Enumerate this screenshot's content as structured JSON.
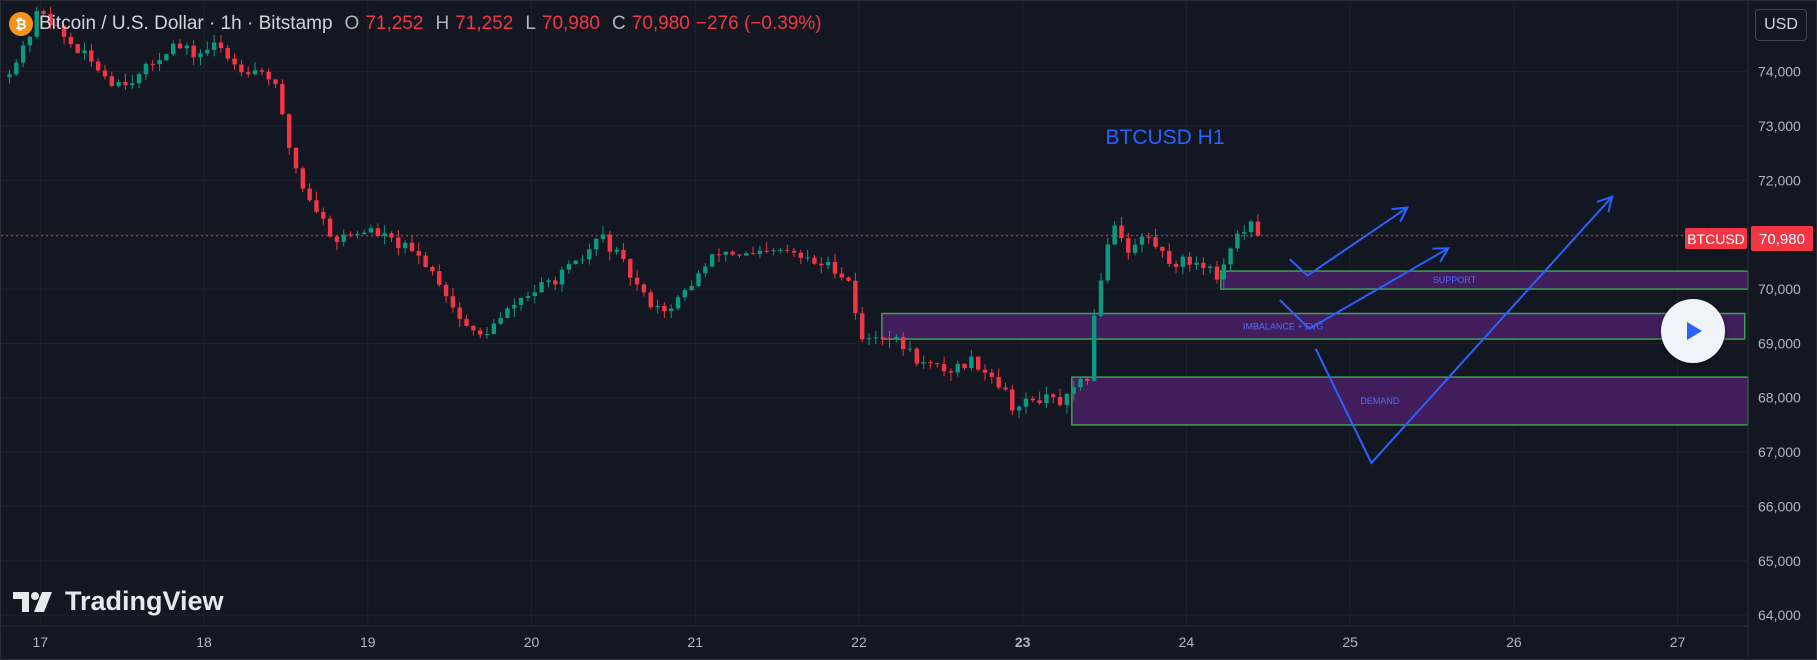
{
  "header": {
    "symbol": "Bitcoin / U.S. Dollar · 1h · Bitstamp",
    "open_label": "O",
    "open": "71,252",
    "high_label": "H",
    "high": "71,252",
    "low_label": "L",
    "low": "70,980",
    "close_label": "C",
    "close": "70,980",
    "change": "−276 (−0.39%)",
    "logo_glyph": "₿"
  },
  "currency": "USD",
  "brand": "TradingView",
  "colors": {
    "up": "#089981",
    "down": "#f23645",
    "zone_fill": "#4a1f66",
    "zone_border": "#3fa04f",
    "annotation": "#2962ff",
    "price_tag": "#f23645"
  },
  "chart_data": {
    "type": "candlestick",
    "title": "BTCUSD H1",
    "x_ticks": [
      "17",
      "18",
      "19",
      "20",
      "21",
      "22",
      "23",
      "24",
      "25",
      "26",
      "27"
    ],
    "y_ticks": [
      "64,000",
      "65,000",
      "66,000",
      "67,000",
      "68,000",
      "69,000",
      "70,000",
      "71,000",
      "72,000",
      "73,000",
      "74,000"
    ],
    "ylim": [
      63800,
      75300
    ],
    "x_range_days": [
      16.76,
      27.43
    ],
    "last_price": 70980,
    "last_price_label": "70,980",
    "price_tag_label": "BTCUSD",
    "key_prices": [
      [
        16.77,
        73900
      ],
      [
        16.9,
        74400
      ],
      [
        17.0,
        75200
      ],
      [
        17.12,
        74700
      ],
      [
        17.3,
        74200
      ],
      [
        17.45,
        73800
      ],
      [
        17.6,
        73900
      ],
      [
        17.8,
        74500
      ],
      [
        17.95,
        74300
      ],
      [
        18.08,
        74500
      ],
      [
        18.2,
        74100
      ],
      [
        18.38,
        74000
      ],
      [
        18.45,
        73600
      ],
      [
        18.5,
        72800
      ],
      [
        18.6,
        71900
      ],
      [
        18.7,
        71400
      ],
      [
        18.8,
        70900
      ],
      [
        19.0,
        71100
      ],
      [
        19.2,
        70800
      ],
      [
        19.35,
        70500
      ],
      [
        19.45,
        70100
      ],
      [
        19.55,
        69500
      ],
      [
        19.67,
        69100
      ],
      [
        19.8,
        69400
      ],
      [
        19.92,
        69800
      ],
      [
        20.1,
        70100
      ],
      [
        20.3,
        70500
      ],
      [
        20.42,
        71000
      ],
      [
        20.55,
        70500
      ],
      [
        20.7,
        69800
      ],
      [
        20.85,
        69600
      ],
      [
        21.0,
        70200
      ],
      [
        21.15,
        70700
      ],
      [
        21.35,
        70600
      ],
      [
        21.55,
        70700
      ],
      [
        21.7,
        70500
      ],
      [
        21.85,
        70400
      ],
      [
        21.96,
        70100
      ],
      [
        22.0,
        69000
      ],
      [
        22.12,
        69200
      ],
      [
        22.25,
        69000
      ],
      [
        22.4,
        68600
      ],
      [
        22.55,
        68500
      ],
      [
        22.7,
        68700
      ],
      [
        22.85,
        68300
      ],
      [
        22.95,
        67800
      ],
      [
        23.1,
        68000
      ],
      [
        23.25,
        67900
      ],
      [
        23.4,
        68400
      ],
      [
        23.45,
        69800
      ],
      [
        23.55,
        71300
      ],
      [
        23.65,
        70700
      ],
      [
        23.75,
        71000
      ],
      [
        23.9,
        70500
      ],
      [
        24.1,
        70500
      ],
      [
        24.2,
        70200
      ],
      [
        24.28,
        70900
      ],
      [
        24.4,
        71150
      ],
      [
        24.45,
        70980
      ]
    ],
    "zones": [
      {
        "label": "SUPPORT",
        "top": 70330,
        "bottom": 70000,
        "x0": 24.21,
        "x1": 27.43
      },
      {
        "label": "IMBALANCE + FVG",
        "top": 69550,
        "bottom": 69080,
        "x0": 22.14,
        "x1": 27.41
      },
      {
        "label": "DEMAND",
        "top": 68380,
        "bottom": 67500,
        "x0": 23.3,
        "x1": 27.43
      }
    ],
    "annotations": [
      {
        "points": [
          [
            24.63,
            70550
          ],
          [
            24.74,
            70250
          ],
          [
            25.35,
            71500
          ]
        ]
      },
      {
        "points": [
          [
            24.57,
            69800
          ],
          [
            24.75,
            69270
          ],
          [
            25.6,
            70750
          ]
        ]
      },
      {
        "points": [
          [
            24.79,
            68900
          ],
          [
            25.13,
            66800
          ],
          [
            26.6,
            71700
          ]
        ]
      }
    ]
  }
}
